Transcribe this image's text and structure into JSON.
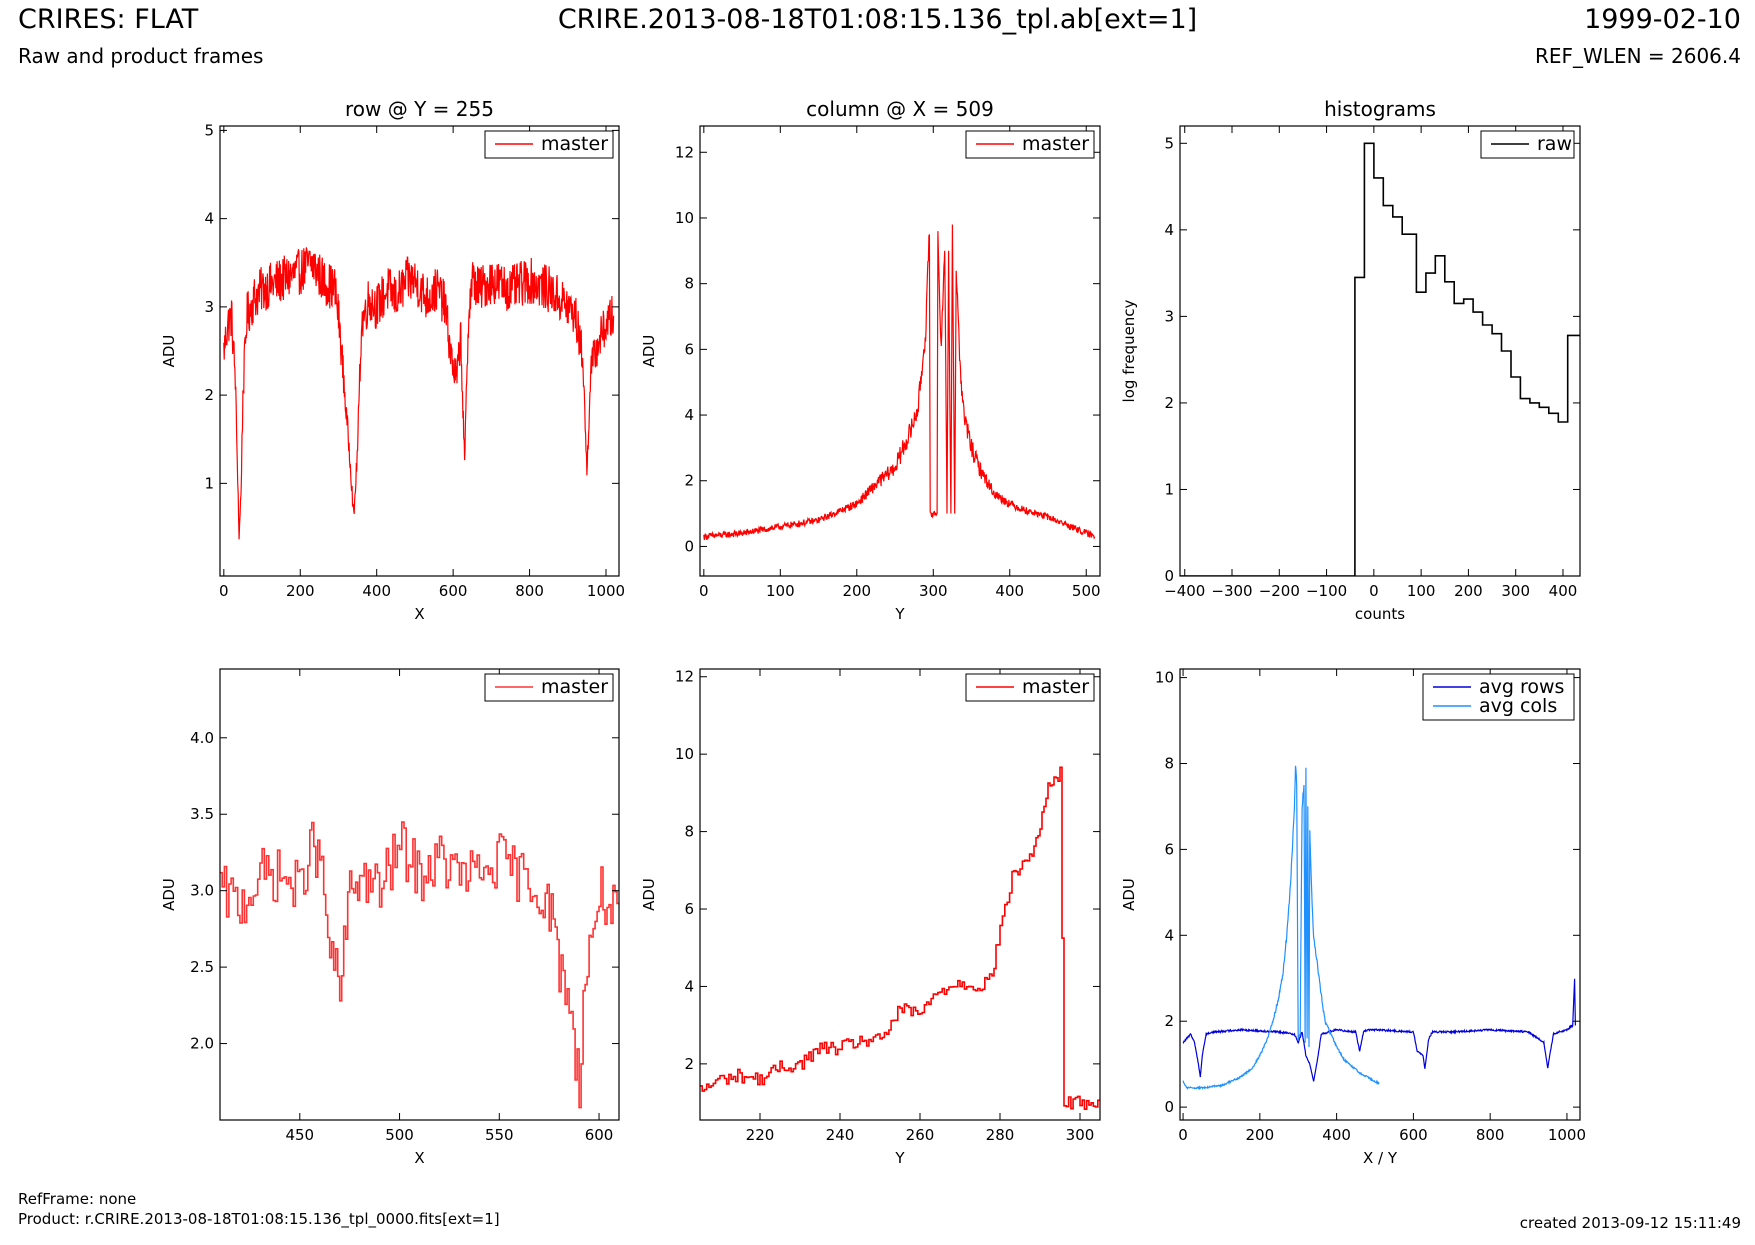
{
  "header": {
    "title": "CRIRES: FLAT",
    "subtitle": "Raw and product frames",
    "file": "CRIRE.2013-08-18T01:08:15.136_tpl.ab[ext=1]",
    "date": "1999-02-10",
    "ref_wlen": "REF_WLEN = 2606.4"
  },
  "footer": {
    "ref_frame": "RefFrame: none",
    "product": "Product: r.CRIRE.2013-08-18T01:08:15.136_tpl_0000.fits[ext=1]",
    "created": "created 2013-09-12 15:11:49"
  },
  "colors": {
    "master": "#ff0000",
    "raw": "#000000",
    "avg_rows": "#0000dd",
    "avg_cols": "#1e90ff"
  },
  "chart_data": [
    {
      "type": "line",
      "title": "row @ Y = 255",
      "xlabel": "X",
      "ylabel": "ADU",
      "xlim": [
        -10,
        1034
      ],
      "ylim": [
        -0.05,
        5.05
      ],
      "xticks": [
        0,
        200,
        400,
        600,
        800,
        1000
      ],
      "yticks": [
        1,
        2,
        3,
        4,
        5
      ],
      "legend": "top-right",
      "series": [
        {
          "name": "master",
          "color": "#ff0000",
          "x": [
            0,
            10,
            20,
            30,
            35,
            40,
            45,
            50,
            60,
            80,
            100,
            150,
            200,
            230,
            260,
            290,
            300,
            310,
            320,
            330,
            340,
            350,
            360,
            380,
            400,
            430,
            450,
            480,
            500,
            530,
            560,
            580,
            590,
            600,
            610,
            620,
            630,
            640,
            650,
            670,
            700,
            750,
            800,
            850,
            900,
            920,
            940,
            950,
            960,
            980,
            1000,
            1020
          ],
          "y": [
            2.5,
            2.8,
            2.9,
            2.2,
            1.3,
            0.4,
            0.9,
            2.0,
            2.9,
            3.1,
            3.2,
            3.3,
            3.4,
            3.5,
            3.3,
            3.2,
            2.9,
            2.4,
            1.8,
            1.3,
            0.6,
            1.4,
            2.8,
            3.1,
            3.0,
            3.2,
            3.1,
            3.3,
            3.3,
            3.1,
            3.2,
            3.0,
            2.6,
            2.3,
            2.2,
            2.7,
            1.2,
            2.9,
            3.3,
            3.2,
            3.3,
            3.2,
            3.3,
            3.2,
            3.0,
            2.9,
            2.4,
            1.1,
            2.3,
            2.6,
            2.8,
            2.9
          ],
          "noise": 0.22
        }
      ]
    },
    {
      "type": "line",
      "title": "column @ X = 509",
      "xlabel": "Y",
      "ylabel": "ADU",
      "xlim": [
        -5,
        518
      ],
      "ylim": [
        -0.9,
        12.8
      ],
      "xticks": [
        0,
        100,
        200,
        300,
        400,
        500
      ],
      "yticks": [
        0,
        2,
        4,
        6,
        8,
        10,
        12
      ],
      "legend": "top-right",
      "series": [
        {
          "name": "master",
          "color": "#ff0000",
          "x": [
            0,
            50,
            100,
            150,
            200,
            230,
            250,
            270,
            280,
            290,
            293,
            295,
            296,
            305,
            306,
            310,
            315,
            318,
            320,
            323,
            325,
            328,
            330,
            335,
            340,
            350,
            360,
            380,
            400,
            420,
            450,
            480,
            511
          ],
          "y": [
            0.3,
            0.4,
            0.6,
            0.8,
            1.3,
            2.0,
            2.4,
            3.5,
            4.2,
            6.5,
            8.5,
            9.5,
            1.0,
            1.0,
            9.6,
            6.0,
            9.0,
            1.0,
            9.0,
            1.0,
            9.8,
            1.0,
            8.5,
            5.5,
            4.0,
            3.0,
            2.4,
            1.6,
            1.3,
            1.1,
            0.9,
            0.6,
            0.3
          ],
          "noise": 0.25
        }
      ]
    },
    {
      "type": "line",
      "title": "histograms",
      "xlabel": "counts",
      "ylabel": "log frequency",
      "xlim": [
        -410,
        436
      ],
      "ylim": [
        0,
        5.2
      ],
      "xticks": [
        -400,
        -300,
        -200,
        -100,
        0,
        100,
        200,
        300,
        400
      ],
      "yticks": [
        0,
        1,
        2,
        3,
        4,
        5
      ],
      "legend": "top-right",
      "step": true,
      "series": [
        {
          "name": "raw",
          "color": "#000000",
          "x": [
            -410,
            -40,
            -40,
            -20,
            -20,
            0,
            0,
            20,
            20,
            40,
            40,
            60,
            60,
            90,
            90,
            110,
            110,
            130,
            130,
            150,
            150,
            170,
            170,
            190,
            190,
            210,
            210,
            230,
            230,
            250,
            250,
            270,
            270,
            290,
            290,
            310,
            310,
            330,
            330,
            350,
            350,
            370,
            370,
            390,
            390,
            410,
            410,
            436
          ],
          "y": [
            0,
            0,
            3.45,
            3.45,
            5.0,
            5.0,
            4.6,
            4.6,
            4.28,
            4.28,
            4.15,
            4.15,
            3.95,
            3.95,
            3.28,
            3.28,
            3.5,
            3.5,
            3.7,
            3.7,
            3.4,
            3.4,
            3.15,
            3.15,
            3.2,
            3.2,
            3.05,
            3.05,
            2.9,
            2.9,
            2.8,
            2.8,
            2.6,
            2.6,
            2.3,
            2.3,
            2.05,
            2.05,
            2.0,
            2.0,
            1.95,
            1.95,
            1.88,
            1.88,
            1.78,
            1.78,
            2.78,
            2.78
          ]
        }
      ]
    },
    {
      "type": "line",
      "title": "",
      "xlabel": "X",
      "ylabel": "ADU",
      "xlim": [
        410,
        610
      ],
      "ylim": [
        1.5,
        4.45
      ],
      "xticks": [
        450,
        500,
        550,
        600
      ],
      "yticks": [
        2.0,
        2.5,
        3.0,
        3.5,
        4.0
      ],
      "legend": "top-right",
      "step": true,
      "series": [
        {
          "name": "master",
          "color": "#ff3333",
          "x": [
            410,
            420,
            430,
            440,
            450,
            455,
            460,
            465,
            470,
            475,
            480,
            490,
            500,
            510,
            520,
            530,
            540,
            550,
            560,
            570,
            575,
            580,
            585,
            588,
            590,
            592,
            595,
            600,
            605,
            610
          ],
          "y": [
            3.0,
            2.9,
            3.1,
            3.1,
            3.0,
            3.3,
            3.2,
            2.6,
            2.35,
            3.0,
            3.1,
            3.0,
            3.3,
            3.1,
            3.2,
            3.1,
            3.1,
            3.2,
            3.1,
            3.0,
            2.9,
            2.5,
            2.3,
            1.9,
            1.75,
            2.3,
            2.6,
            3.0,
            2.9,
            2.8
          ],
          "noise": 0.18
        }
      ]
    },
    {
      "type": "line",
      "title": "",
      "xlabel": "Y",
      "ylabel": "ADU",
      "xlim": [
        205,
        305
      ],
      "ylim": [
        0.55,
        12.2
      ],
      "xticks": [
        220,
        240,
        260,
        280,
        300
      ],
      "yticks": [
        2,
        4,
        6,
        8,
        10,
        12
      ],
      "legend": "top-right",
      "step": true,
      "series": [
        {
          "name": "master",
          "color": "#ff0000",
          "x": [
            205,
            210,
            215,
            220,
            225,
            230,
            235,
            240,
            245,
            250,
            255,
            260,
            265,
            270,
            275,
            278,
            280,
            283,
            285,
            288,
            290,
            292,
            294,
            295,
            296,
            300,
            305
          ],
          "y": [
            1.3,
            1.6,
            1.7,
            1.6,
            1.9,
            2.0,
            2.4,
            2.4,
            2.6,
            2.6,
            3.4,
            3.3,
            3.9,
            4.1,
            4.0,
            4.3,
            5.5,
            6.8,
            7.1,
            7.4,
            8.2,
            9.1,
            9.4,
            9.5,
            1.0,
            1.0,
            1.0
          ],
          "noise": 0.18
        }
      ]
    },
    {
      "type": "line",
      "title": "",
      "xlabel": "X / Y",
      "ylabel": "ADU",
      "xlim": [
        -8,
        1034
      ],
      "ylim": [
        -0.3,
        10.2
      ],
      "xticks": [
        0,
        200,
        400,
        600,
        800,
        1000
      ],
      "yticks": [
        0,
        2,
        4,
        6,
        8,
        10
      ],
      "legend": "top-right",
      "series": [
        {
          "name": "avg rows",
          "color": "#0000dd",
          "x": [
            0,
            20,
            30,
            40,
            45,
            50,
            60,
            80,
            150,
            250,
            290,
            300,
            310,
            320,
            330,
            340,
            350,
            360,
            400,
            450,
            460,
            470,
            480,
            500,
            600,
            610,
            625,
            630,
            640,
            650,
            700,
            800,
            900,
            940,
            950,
            955,
            965,
            980,
            1000,
            1015,
            1020,
            1022
          ],
          "y": [
            1.5,
            1.7,
            1.5,
            1.0,
            0.7,
            1.2,
            1.7,
            1.75,
            1.8,
            1.75,
            1.7,
            1.5,
            1.75,
            1.2,
            1.0,
            0.6,
            1.1,
            1.7,
            1.8,
            1.75,
            1.3,
            1.75,
            1.8,
            1.8,
            1.75,
            1.3,
            1.2,
            0.9,
            1.6,
            1.75,
            1.75,
            1.8,
            1.75,
            1.5,
            0.9,
            1.2,
            1.7,
            1.75,
            1.8,
            1.9,
            3.0,
            1.9
          ],
          "noise": 0.03
        },
        {
          "name": "avg cols",
          "color": "#1e90ff",
          "x": [
            0,
            5,
            10,
            50,
            100,
            150,
            180,
            200,
            220,
            240,
            250,
            260,
            270,
            280,
            290,
            293,
            296,
            300,
            305,
            310,
            315,
            318,
            320,
            323,
            325,
            328,
            330,
            335,
            340,
            350,
            360,
            370,
            380,
            400,
            420,
            440,
            460,
            480,
            500,
            511
          ],
          "y": [
            0.6,
            0.5,
            0.45,
            0.45,
            0.5,
            0.7,
            0.9,
            1.2,
            1.6,
            2.2,
            2.6,
            3.1,
            4.0,
            5.2,
            7.0,
            8.0,
            7.5,
            1.6,
            1.7,
            7.0,
            7.5,
            1.5,
            7.9,
            1.6,
            7.0,
            1.4,
            6.5,
            5.0,
            4.0,
            3.3,
            2.6,
            2.0,
            1.8,
            1.4,
            1.1,
            0.95,
            0.8,
            0.7,
            0.6,
            0.55
          ],
          "noise": 0.05
        }
      ]
    }
  ]
}
